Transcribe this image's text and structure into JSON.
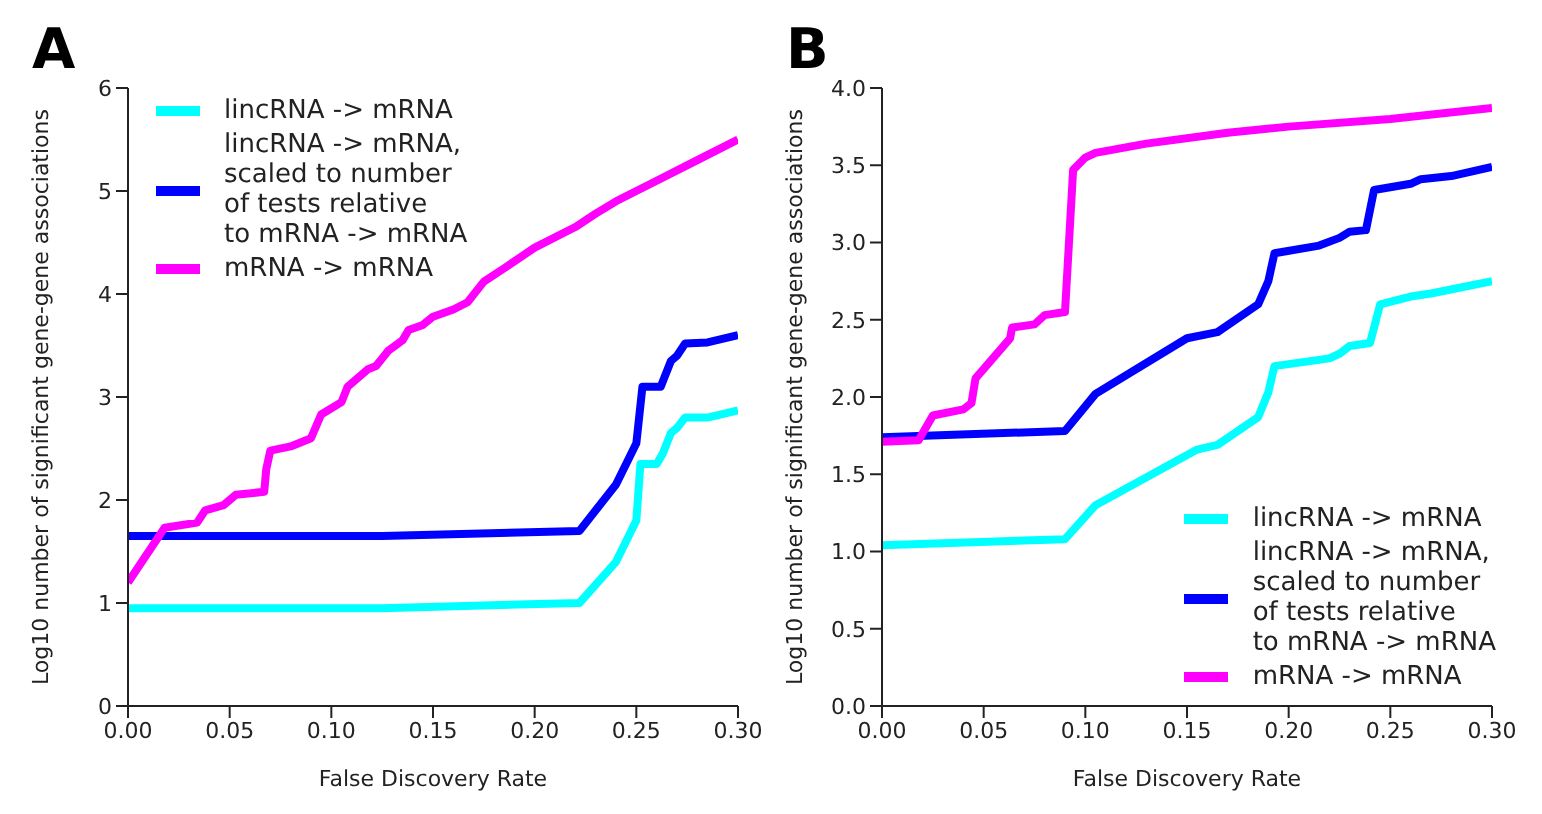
{
  "chart_data": [
    {
      "type": "line",
      "title": "A",
      "xlabel": "False Discovery Rate",
      "ylabel": "Log10 number of significant gene-gene associations",
      "xlim": [
        0,
        0.3
      ],
      "ylim": [
        0,
        6
      ],
      "xticks": [
        {
          "value": 0,
          "label": "0.00"
        },
        0.05,
        {
          "value": 0.1,
          "label": "0.10"
        },
        0.15,
        {
          "value": 0.2,
          "label": "0.20"
        },
        0.25,
        {
          "value": 0.3,
          "label": "0.30"
        }
      ],
      "yticks": [
        0,
        1,
        2,
        3,
        4,
        5,
        6
      ],
      "legend": "top left",
      "marker": "none",
      "line_style": "solid",
      "series": [
        {
          "name": "lincRNA -> mRNA",
          "color": "#00ffff",
          "x": [
            0,
            0.125,
            0.222,
            0.24,
            0.25,
            0.252,
            0.26,
            0.263,
            0.267,
            0.27,
            0.274,
            0.285,
            0.3
          ],
          "values": [
            0.95,
            0.95,
            1.0,
            1.4,
            1.8,
            2.35,
            2.35,
            2.45,
            2.65,
            2.7,
            2.8,
            2.8,
            2.87
          ]
        },
        {
          "name": "lincRNA -> mRNA,\nscaled to number\nof tests relative\nto mRNA -> mRNA",
          "color": "#0000ff",
          "x": [
            0,
            0.125,
            0.222,
            0.24,
            0.25,
            0.253,
            0.262,
            0.267,
            0.27,
            0.274,
            0.285,
            0.3
          ],
          "values": [
            1.65,
            1.65,
            1.7,
            2.15,
            2.55,
            3.1,
            3.1,
            3.35,
            3.4,
            3.52,
            3.53,
            3.6
          ]
        },
        {
          "name": "mRNA -> mRNA",
          "color": "#ff00ff",
          "x": [
            0,
            0.018,
            0.034,
            0.038,
            0.047,
            0.053,
            0.067,
            0.068,
            0.07,
            0.08,
            0.09,
            0.095,
            0.105,
            0.108,
            0.118,
            0.122,
            0.128,
            0.135,
            0.138,
            0.145,
            0.15,
            0.16,
            0.167,
            0.175,
            0.185,
            0.2,
            0.22,
            0.23,
            0.24,
            0.26,
            0.28,
            0.3
          ],
          "values": [
            1.2,
            1.73,
            1.78,
            1.9,
            1.95,
            2.05,
            2.08,
            2.3,
            2.48,
            2.52,
            2.6,
            2.83,
            2.95,
            3.1,
            3.27,
            3.3,
            3.45,
            3.55,
            3.65,
            3.7,
            3.78,
            3.85,
            3.92,
            4.12,
            4.25,
            4.45,
            4.65,
            4.78,
            4.9,
            5.1,
            5.3,
            5.5
          ]
        }
      ]
    },
    {
      "type": "line",
      "title": "B",
      "xlabel": "False Discovery Rate",
      "ylabel": "Log10 number of significant gene-gene associations",
      "xlim": [
        0,
        0.3
      ],
      "ylim": [
        0,
        4
      ],
      "xticks": [
        {
          "value": 0,
          "label": "0.00"
        },
        0.05,
        {
          "value": 0.1,
          "label": "0.10"
        },
        0.15,
        {
          "value": 0.2,
          "label": "0.20"
        },
        0.25,
        {
          "value": 0.3,
          "label": "0.30"
        }
      ],
      "yticks": [
        {
          "value": 0,
          "label": "0.0"
        },
        0.5,
        {
          "value": 1,
          "label": "1.0"
        },
        1.5,
        {
          "value": 2,
          "label": "2.0"
        },
        2.5,
        {
          "value": 3,
          "label": "3.0"
        },
        3.5,
        {
          "value": 4,
          "label": "4.0"
        }
      ],
      "legend": "bottom right",
      "marker": "none",
      "line_style": "solid",
      "series": [
        {
          "name": "lincRNA -> mRNA",
          "color": "#00ffff",
          "x": [
            0,
            0.09,
            0.105,
            0.155,
            0.165,
            0.185,
            0.19,
            0.193,
            0.22,
            0.225,
            0.23,
            0.24,
            0.245,
            0.26,
            0.27,
            0.3
          ],
          "values": [
            1.04,
            1.08,
            1.3,
            1.66,
            1.69,
            1.87,
            2.03,
            2.2,
            2.25,
            2.28,
            2.33,
            2.35,
            2.6,
            2.65,
            2.67,
            2.75
          ]
        },
        {
          "name": "lincRNA -> mRNA,\nscaled to number\nof tests relative\nto mRNA -> mRNA",
          "color": "#0000ff",
          "x": [
            0,
            0.09,
            0.105,
            0.15,
            0.165,
            0.185,
            0.19,
            0.193,
            0.215,
            0.225,
            0.23,
            0.238,
            0.242,
            0.26,
            0.265,
            0.28,
            0.3
          ],
          "values": [
            1.74,
            1.78,
            2.02,
            2.38,
            2.42,
            2.6,
            2.75,
            2.93,
            2.98,
            3.03,
            3.07,
            3.08,
            3.34,
            3.38,
            3.41,
            3.43,
            3.49
          ]
        },
        {
          "name": "mRNA -> mRNA",
          "color": "#ff00ff",
          "x": [
            0,
            0.018,
            0.025,
            0.04,
            0.044,
            0.046,
            0.063,
            0.064,
            0.075,
            0.08,
            0.09,
            0.094,
            0.1,
            0.105,
            0.13,
            0.17,
            0.2,
            0.25,
            0.3
          ],
          "values": [
            1.71,
            1.72,
            1.88,
            1.92,
            1.96,
            2.12,
            2.38,
            2.45,
            2.47,
            2.53,
            2.55,
            3.47,
            3.55,
            3.58,
            3.64,
            3.71,
            3.75,
            3.8,
            3.87
          ]
        }
      ]
    }
  ]
}
